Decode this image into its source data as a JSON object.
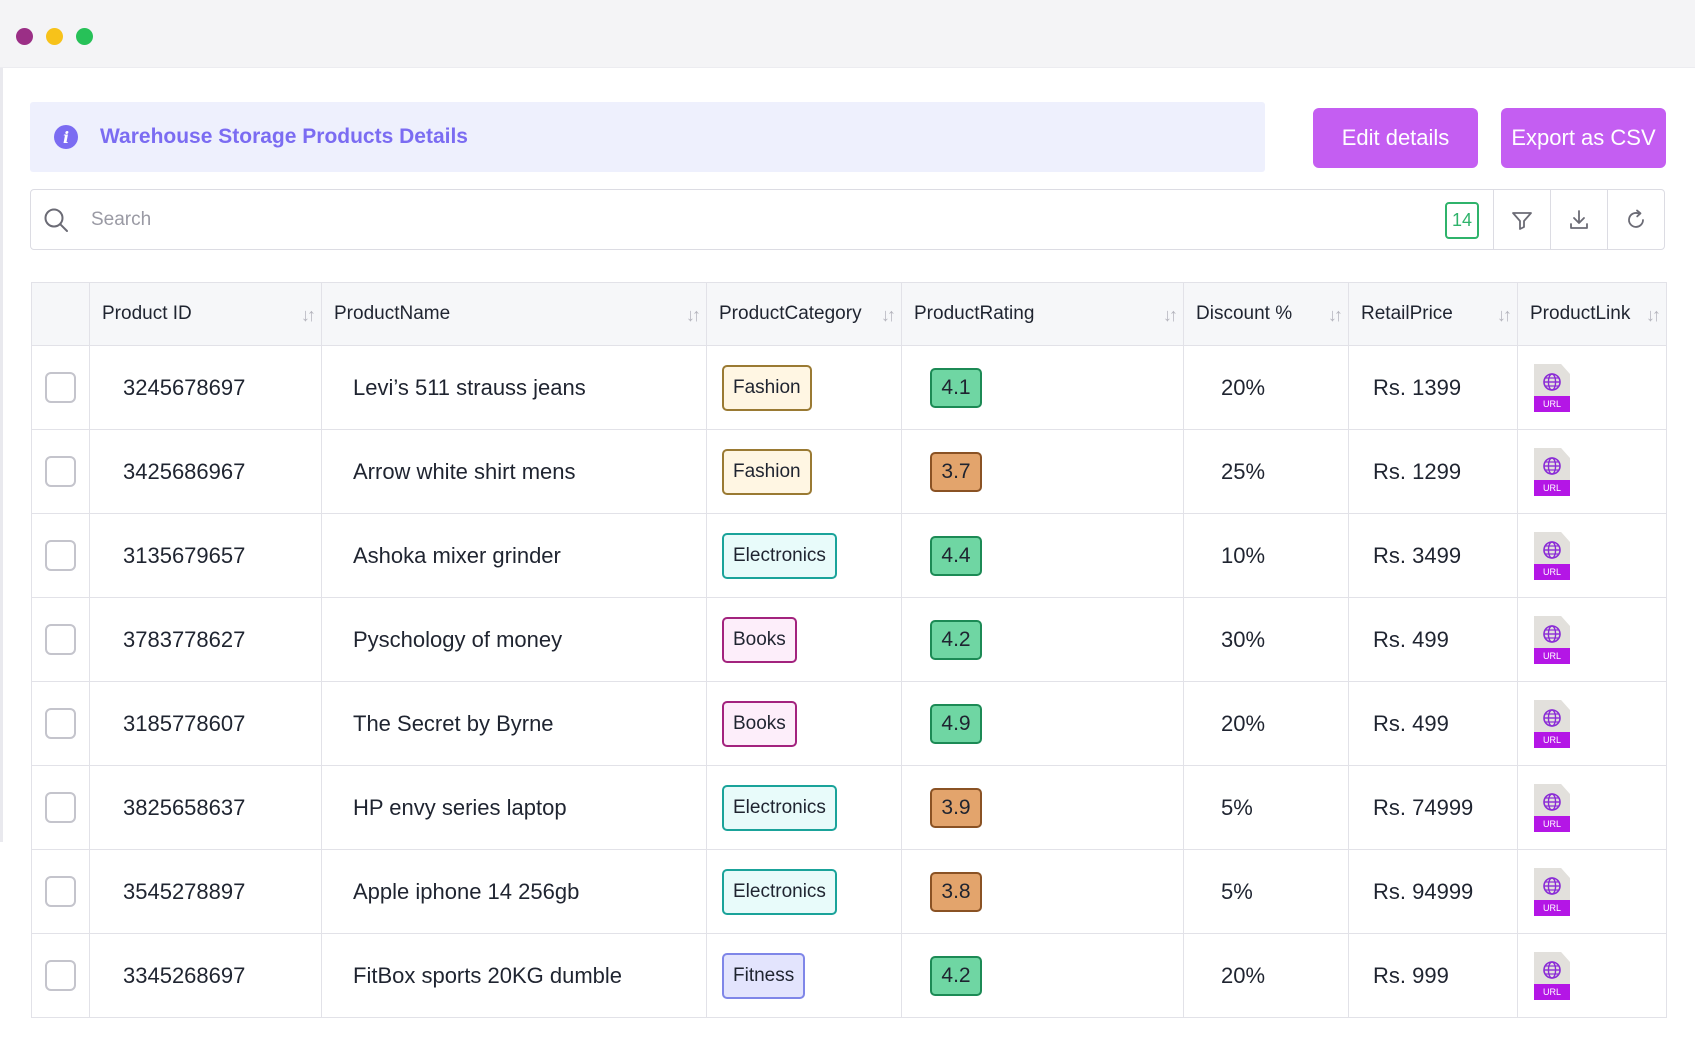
{
  "window": {
    "controls": [
      "close",
      "minimize",
      "maximize"
    ]
  },
  "banner": {
    "title": "Warehouse Storage Products Details",
    "icon": "info-icon"
  },
  "actions": {
    "edit_label": "Edit details",
    "export_label": "Export as CSV"
  },
  "search": {
    "placeholder": "Search",
    "value": "",
    "count": "14"
  },
  "table": {
    "columns": [
      "Product ID",
      "ProductName",
      "ProductCategory",
      "ProductRating",
      "Discount %",
      "RetailPrice",
      "ProductLink"
    ],
    "link_label": "URL",
    "rows": [
      {
        "id": "3245678697",
        "name": "Levi’s 511 strauss jeans",
        "category": "Fashion",
        "rating": "4.1",
        "discount": "20%",
        "price": "Rs. 1399"
      },
      {
        "id": "3425686967",
        "name": "Arrow white shirt mens",
        "category": "Fashion",
        "rating": "3.7",
        "discount": "25%",
        "price": "Rs. 1299"
      },
      {
        "id": "3135679657",
        "name": "Ashoka mixer grinder",
        "category": "Electronics",
        "rating": "4.4",
        "discount": "10%",
        "price": "Rs. 3499"
      },
      {
        "id": "3783778627",
        "name": "Pyschology of money",
        "category": "Books",
        "rating": "4.2",
        "discount": "30%",
        "price": "Rs. 499"
      },
      {
        "id": "3185778607",
        "name": "The Secret by Byrne",
        "category": "Books",
        "rating": "4.9",
        "discount": "20%",
        "price": "Rs. 499"
      },
      {
        "id": "3825658637",
        "name": "HP envy series laptop",
        "category": "Electronics",
        "rating": "3.9",
        "discount": "5%",
        "price": "Rs. 74999"
      },
      {
        "id": "3545278897",
        "name": "Apple iphone 14 256gb",
        "category": "Electronics",
        "rating": "3.8",
        "discount": "5%",
        "price": "Rs. 94999"
      },
      {
        "id": "3345268697",
        "name": "FitBox sports 20KG dumble",
        "category": "Fitness",
        "rating": "4.2",
        "discount": "20%",
        "price": "Rs. 999"
      }
    ]
  },
  "colors": {
    "accent": "#c45ef2",
    "banner_text": "#7b6cf2",
    "banner_bg": "#eef0fd",
    "count_badge": "#2fb36b",
    "rating_high_bg": "#6fd6a3",
    "rating_high_border": "#1c8a55",
    "rating_low_bg": "#e3a46c",
    "rating_low_border": "#8a5224",
    "category": {
      "Fashion": {
        "bg": "#fff6e3",
        "border": "#9a7a33"
      },
      "Electronics": {
        "bg": "#e8fbfa",
        "border": "#1aa39a"
      },
      "Books": {
        "bg": "#fdeefa",
        "border": "#a3237e"
      },
      "Fitness": {
        "bg": "#e3e4fd",
        "border": "#7f86e8"
      }
    }
  }
}
